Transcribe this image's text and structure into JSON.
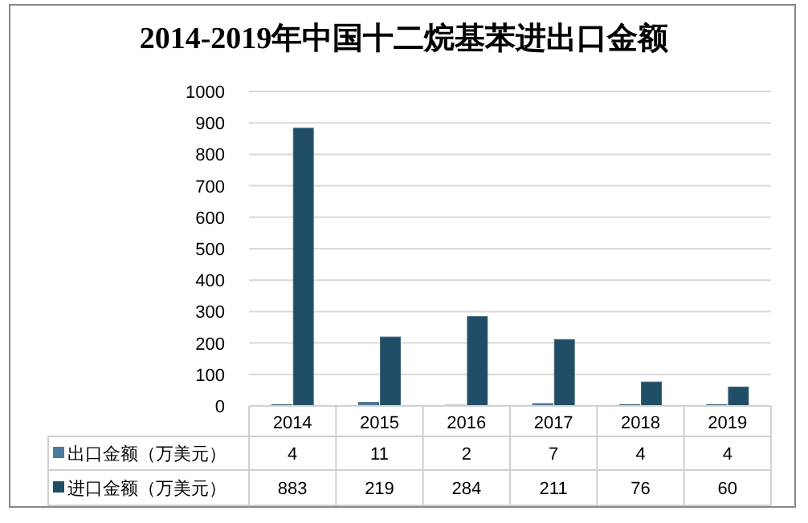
{
  "chart_data": {
    "type": "bar",
    "title": "2014-2019年中国十二烷基苯进出口金额",
    "categories": [
      "2014",
      "2015",
      "2016",
      "2017",
      "2018",
      "2019"
    ],
    "series": [
      {
        "name": "出口金额（万美元）",
        "color": "#4a7b9b",
        "values": [
          4,
          11,
          2,
          7,
          4,
          4
        ]
      },
      {
        "name": "进口金额（万美元）",
        "color": "#1f4e66",
        "values": [
          883,
          219,
          284,
          211,
          76,
          60
        ]
      }
    ],
    "ylim": [
      0,
      1000
    ],
    "yticks": [
      0,
      100,
      200,
      300,
      400,
      500,
      600,
      700,
      800,
      900,
      1000
    ],
    "grid": "y",
    "legend": "bottom left",
    "data_labels": true
  }
}
